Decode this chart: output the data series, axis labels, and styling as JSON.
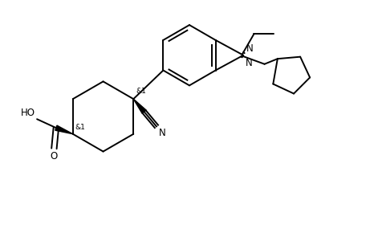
{
  "background_color": "#ffffff",
  "line_color": "#000000",
  "line_width": 1.4,
  "font_size": 8.5,
  "fig_width": 4.66,
  "fig_height": 2.85,
  "dpi": 100,
  "xlim": [
    0,
    9.32
  ],
  "ylim": [
    0,
    5.7
  ]
}
